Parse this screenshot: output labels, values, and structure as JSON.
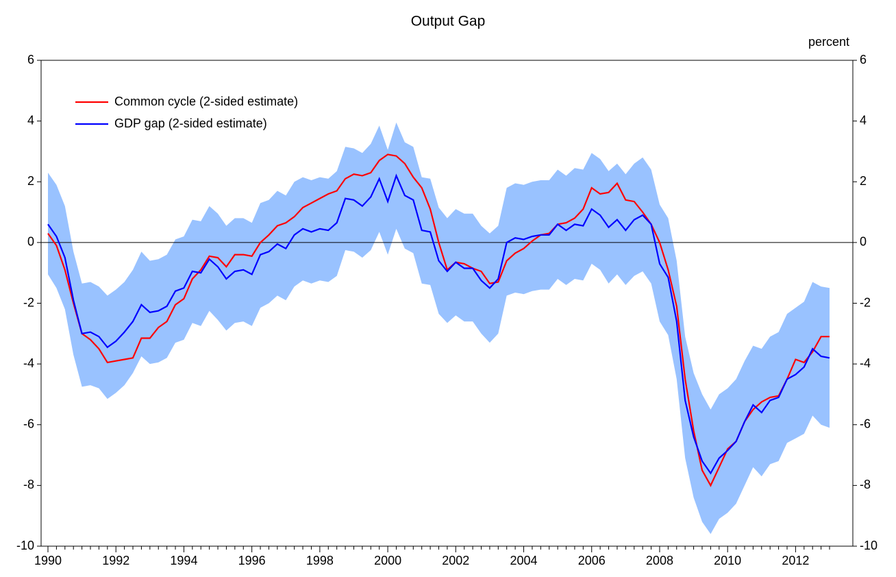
{
  "chart_data": {
    "type": "line",
    "title": "Output Gap",
    "ylabel": "percent",
    "categories": [
      "1990",
      null,
      null,
      null,
      null,
      null,
      null,
      null,
      "1992",
      null,
      null,
      null,
      null,
      null,
      null,
      null,
      "1994",
      null,
      null,
      null,
      null,
      null,
      null,
      null,
      "1996",
      null,
      null,
      null,
      null,
      null,
      null,
      null,
      "1998",
      null,
      null,
      null,
      null,
      null,
      null,
      null,
      "2000",
      null,
      null,
      null,
      null,
      null,
      null,
      null,
      "2002",
      null,
      null,
      null,
      null,
      null,
      null,
      null,
      "2004",
      null,
      null,
      null,
      null,
      null,
      null,
      null,
      "2006",
      null,
      null,
      null,
      null,
      null,
      null,
      null,
      "2008",
      null,
      null,
      null,
      null,
      null,
      null,
      null,
      "2010",
      null,
      null,
      null,
      null,
      null,
      null,
      null,
      "2012",
      null,
      null,
      null,
      null
    ],
    "series": [
      {
        "name": "Common cycle (2-sided estimate)",
        "color": "#ff0000",
        "values": [
          0.3,
          -0.1,
          -0.9,
          -2.0,
          -3.0,
          -3.2,
          -3.5,
          -3.95,
          -3.9,
          -3.85,
          -3.8,
          -3.15,
          -3.15,
          -2.8,
          -2.6,
          -2.05,
          -1.85,
          -1.2,
          -0.9,
          -0.45,
          -0.5,
          -0.8,
          -0.4,
          -0.4,
          -0.45,
          0.0,
          0.25,
          0.55,
          0.65,
          0.85,
          1.15,
          1.3,
          1.45,
          1.6,
          1.7,
          2.1,
          2.25,
          2.2,
          2.3,
          2.7,
          2.9,
          2.85,
          2.6,
          2.15,
          1.8,
          1.1,
          0.0,
          -0.9,
          -0.65,
          -0.7,
          -0.85,
          -0.95,
          -1.35,
          -1.3,
          -0.6,
          -0.35,
          -0.2,
          0.05,
          0.25,
          0.3,
          0.6,
          0.65,
          0.8,
          1.1,
          1.8,
          1.6,
          1.65,
          1.95,
          1.4,
          1.35,
          1.0,
          0.6,
          0.0,
          -0.9,
          -2.1,
          -4.5,
          -6.2,
          -7.5,
          -8.0,
          -7.4,
          -6.8,
          -6.55,
          -5.9,
          -5.5,
          -5.25,
          -5.1,
          -5.05,
          -4.5,
          -3.85,
          -3.95,
          -3.6,
          -3.1,
          -3.1
        ]
      },
      {
        "name": "GDP gap (2-sided estimate)",
        "color": "#0000ff",
        "values": [
          0.6,
          0.2,
          -0.5,
          -1.9,
          -3.0,
          -2.95,
          -3.1,
          -3.45,
          -3.25,
          -2.95,
          -2.6,
          -2.05,
          -2.3,
          -2.25,
          -2.1,
          -1.6,
          -1.5,
          -0.95,
          -1.0,
          -0.55,
          -0.8,
          -1.2,
          -0.95,
          -0.9,
          -1.05,
          -0.4,
          -0.3,
          -0.05,
          -0.2,
          0.25,
          0.45,
          0.35,
          0.45,
          0.4,
          0.65,
          1.45,
          1.4,
          1.2,
          1.5,
          2.1,
          1.35,
          2.2,
          1.55,
          1.4,
          0.4,
          0.35,
          -0.6,
          -0.95,
          -0.65,
          -0.85,
          -0.85,
          -1.25,
          -1.5,
          -1.2,
          0.0,
          0.15,
          0.1,
          0.2,
          0.25,
          0.25,
          0.6,
          0.4,
          0.6,
          0.55,
          1.1,
          0.9,
          0.5,
          0.75,
          0.4,
          0.75,
          0.9,
          0.6,
          -0.7,
          -1.15,
          -2.6,
          -5.2,
          -6.4,
          -7.2,
          -7.6,
          -7.1,
          -6.85,
          -6.55,
          -5.9,
          -5.35,
          -5.6,
          -5.2,
          -5.1,
          -4.5,
          -4.35,
          -4.1,
          -3.5,
          -3.75,
          -3.8
        ]
      }
    ],
    "band": {
      "color": "#99c2ff",
      "upper": [
        2.3,
        1.9,
        1.2,
        -0.3,
        -1.35,
        -1.3,
        -1.45,
        -1.75,
        -1.55,
        -1.3,
        -0.9,
        -0.3,
        -0.6,
        -0.55,
        -0.4,
        0.1,
        0.2,
        0.75,
        0.7,
        1.2,
        0.95,
        0.55,
        0.8,
        0.8,
        0.65,
        1.3,
        1.4,
        1.7,
        1.55,
        2.0,
        2.15,
        2.05,
        2.15,
        2.1,
        2.35,
        3.15,
        3.1,
        2.95,
        3.25,
        3.85,
        3.05,
        3.95,
        3.3,
        3.15,
        2.15,
        2.1,
        1.15,
        0.8,
        1.1,
        0.95,
        0.95,
        0.55,
        0.3,
        0.55,
        1.8,
        1.95,
        1.9,
        2.0,
        2.05,
        2.05,
        2.4,
        2.2,
        2.45,
        2.4,
        2.95,
        2.75,
        2.35,
        2.6,
        2.25,
        2.6,
        2.8,
        2.4,
        1.25,
        0.8,
        -0.6,
        -3.1,
        -4.3,
        -5.0,
        -5.5,
        -5.0,
        -4.8,
        -4.5,
        -3.9,
        -3.4,
        -3.5,
        -3.1,
        -2.95,
        -2.35,
        -2.15,
        -1.95,
        -1.3,
        -1.45,
        -1.5
      ],
      "lower": [
        -1.05,
        -1.5,
        -2.2,
        -3.7,
        -4.75,
        -4.7,
        -4.8,
        -5.15,
        -4.95,
        -4.7,
        -4.3,
        -3.75,
        -4.0,
        -3.95,
        -3.8,
        -3.3,
        -3.2,
        -2.65,
        -2.75,
        -2.25,
        -2.55,
        -2.9,
        -2.65,
        -2.6,
        -2.75,
        -2.15,
        -2.0,
        -1.75,
        -1.9,
        -1.45,
        -1.25,
        -1.35,
        -1.25,
        -1.3,
        -1.1,
        -0.25,
        -0.3,
        -0.5,
        -0.25,
        0.35,
        -0.4,
        0.45,
        -0.2,
        -0.35,
        -1.35,
        -1.4,
        -2.35,
        -2.65,
        -2.4,
        -2.6,
        -2.6,
        -3.0,
        -3.3,
        -3.0,
        -1.75,
        -1.65,
        -1.7,
        -1.6,
        -1.55,
        -1.55,
        -1.2,
        -1.4,
        -1.2,
        -1.25,
        -0.7,
        -0.9,
        -1.35,
        -1.05,
        -1.4,
        -1.1,
        -0.95,
        -1.35,
        -2.6,
        -3.05,
        -4.5,
        -7.1,
        -8.4,
        -9.2,
        -9.6,
        -9.1,
        -8.9,
        -8.6,
        -8.0,
        -7.4,
        -7.7,
        -7.3,
        -7.2,
        -6.6,
        -6.45,
        -6.3,
        -5.7,
        -6.0,
        -6.1
      ]
    },
    "ylim": [
      -10,
      6
    ],
    "yticks": [
      -10,
      -8,
      -6,
      -4,
      -2,
      0,
      2,
      4,
      6
    ],
    "zero_line": true,
    "legend": "upper left"
  }
}
